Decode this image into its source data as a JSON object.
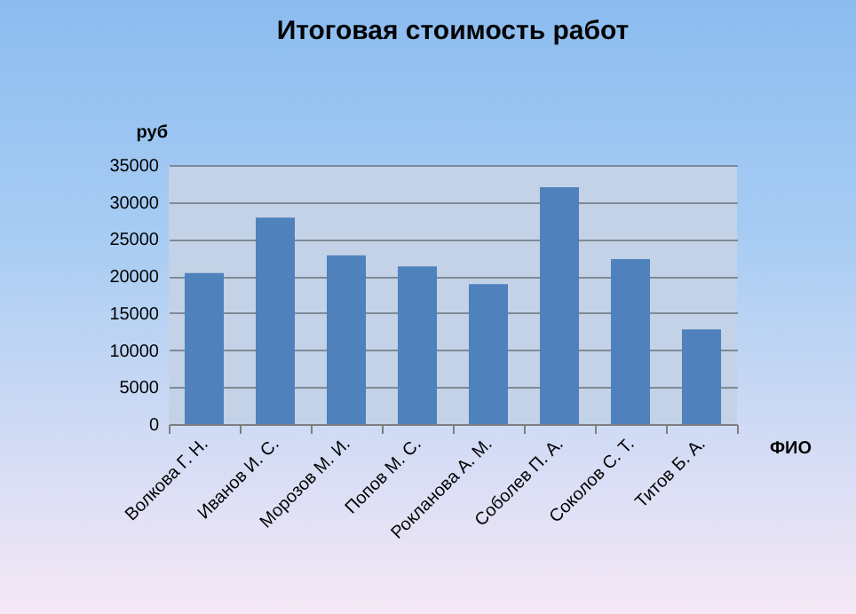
{
  "chart_data": {
    "type": "bar",
    "title": "Итоговая стоимость работ",
    "xlabel": "ФИО",
    "ylabel": "руб",
    "categories": [
      "Волкова Г. Н.",
      "Иванов И. С.",
      "Морозов М. И.",
      "Попов М. С.",
      "Рокланова А. М.",
      "Соболев П. А.",
      "Соколов С. Т.",
      "Титов Б. А."
    ],
    "values": [
      20400,
      27900,
      22800,
      21300,
      18900,
      32000,
      22300,
      12800
    ],
    "color": "#4f81bd",
    "ylim": [
      0,
      35000
    ],
    "yticks": [
      0,
      5000,
      10000,
      15000,
      20000,
      25000,
      30000,
      35000
    ],
    "grid": "y"
  }
}
